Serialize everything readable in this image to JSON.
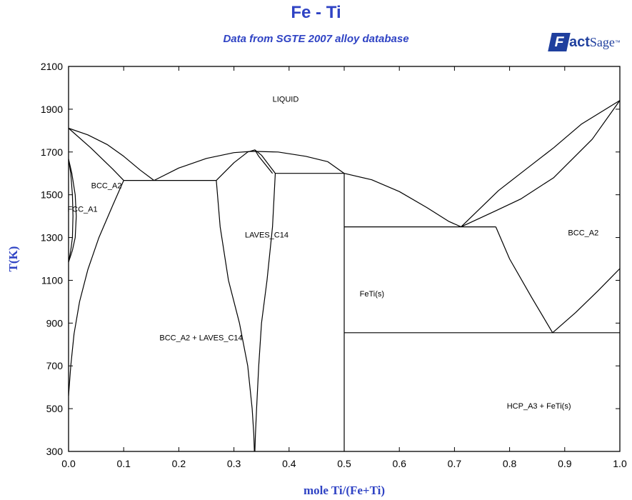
{
  "header": {
    "title": "Fe - Ti",
    "subtitle": "Data from SGTE 2007 alloy database",
    "logo_text": "FactSage™",
    "logo_parts": {
      "mark": "F",
      "act": "act",
      "sage": "Sage",
      "tm": "™"
    }
  },
  "colors": {
    "title": "#2f43c4",
    "logo": "#1f3f9e",
    "line": "#000000",
    "axis_label": "#2f43c4"
  },
  "chart_data": {
    "type": "line",
    "title": "Fe - Ti",
    "subtitle": "Data from SGTE 2007 alloy database",
    "xlabel": "mole Ti/(Fe+Ti)",
    "ylabel": "T(K)",
    "xlim": [
      0,
      1
    ],
    "ylim": [
      300,
      2100
    ],
    "grid": false,
    "xticks": [
      "0.0",
      "0.1",
      "0.2",
      "0.3",
      "0.4",
      "0.5",
      "0.6",
      "0.7",
      "0.8",
      "0.9",
      "1.0"
    ],
    "yticks": [
      "300",
      "500",
      "700",
      "900",
      "1100",
      "1300",
      "1500",
      "1700",
      "1900",
      "2100"
    ],
    "xtick_values": [
      0,
      0.1,
      0.2,
      0.3,
      0.4,
      0.5,
      0.6,
      0.7,
      0.8,
      0.9,
      1.0
    ],
    "ytick_values": [
      300,
      500,
      700,
      900,
      1100,
      1300,
      1500,
      1700,
      1900,
      2100
    ],
    "series": [
      {
        "x": [
          0.0,
          0.035,
          0.07,
          0.1,
          0.13,
          0.155
        ],
        "y": [
          1811,
          1780,
          1735,
          1680,
          1615,
          1567
        ]
      },
      {
        "x": [
          0.0,
          0.04,
          0.08,
          0.1
        ],
        "y": [
          1811,
          1720,
          1620,
          1567
        ]
      },
      {
        "x": [
          0.1,
          0.08,
          0.055,
          0.035,
          0.02,
          0.01,
          0.004,
          0.0
        ],
        "y": [
          1567,
          1450,
          1300,
          1150,
          1000,
          850,
          700,
          560
        ]
      },
      {
        "x": [
          0.0,
          0.006,
          0.012,
          0.014,
          0.012,
          0.007,
          0.0
        ],
        "y": [
          1667,
          1600,
          1500,
          1400,
          1300,
          1240,
          1185
        ]
      },
      {
        "x": [
          0.0,
          0.004,
          0.007,
          0.008,
          0.007,
          0.004,
          0.0
        ],
        "y": [
          1667,
          1600,
          1500,
          1400,
          1300,
          1240,
          1185
        ]
      },
      {
        "x": [
          0.1,
          0.268
        ],
        "y": [
          1567,
          1567
        ]
      },
      {
        "x": [
          0.155,
          0.2,
          0.25,
          0.3,
          0.333,
          0.38,
          0.43,
          0.47,
          0.5
        ],
        "y": [
          1567,
          1625,
          1670,
          1697,
          1703,
          1700,
          1680,
          1655,
          1600
        ]
      },
      {
        "x": [
          0.5,
          0.55,
          0.6,
          0.65,
          0.69,
          0.712
        ],
        "y": [
          1600,
          1570,
          1515,
          1440,
          1375,
          1350
        ]
      },
      {
        "x": [
          0.268,
          0.3,
          0.325,
          0.338,
          0.35,
          0.375
        ],
        "y": [
          1567,
          1650,
          1700,
          1710,
          1685,
          1600
        ]
      },
      {
        "x": [
          0.268,
          0.275,
          0.29,
          0.31,
          0.325,
          0.333,
          0.336,
          0.337
        ],
        "y": [
          1567,
          1350,
          1100,
          900,
          700,
          500,
          380,
          300
        ]
      },
      {
        "x": [
          0.375,
          0.37,
          0.36,
          0.35,
          0.345,
          0.341,
          0.339,
          0.338
        ],
        "y": [
          1600,
          1350,
          1100,
          900,
          700,
          500,
          380,
          300
        ]
      },
      {
        "x": [
          0.338,
          0.345,
          0.37
        ],
        "y": [
          1710,
          1680,
          1600
        ]
      },
      {
        "x": [
          0.375,
          0.5
        ],
        "y": [
          1600,
          1600
        ]
      },
      {
        "x": [
          0.5,
          0.5
        ],
        "y": [
          1600,
          300
        ]
      },
      {
        "x": [
          0.5,
          0.775
        ],
        "y": [
          1350,
          1350
        ]
      },
      {
        "x": [
          0.712,
          0.775,
          0.82,
          0.88,
          0.95,
          1.0
        ],
        "y": [
          1350,
          1425,
          1480,
          1580,
          1760,
          1941
        ]
      },
      {
        "x": [
          0.712,
          0.78,
          0.83,
          0.88,
          0.93,
          1.0
        ],
        "y": [
          1350,
          1520,
          1620,
          1720,
          1830,
          1941
        ]
      },
      {
        "x": [
          0.775,
          0.8,
          0.84,
          0.878
        ],
        "y": [
          1350,
          1200,
          1020,
          855
        ]
      },
      {
        "x": [
          0.878,
          0.92,
          0.96,
          1.0
        ],
        "y": [
          855,
          950,
          1050,
          1155
        ]
      },
      {
        "x": [
          0.5,
          1.0
        ],
        "y": [
          855,
          855
        ]
      }
    ],
    "annotations": [
      {
        "text": "LIQUID",
        "x": 0.37,
        "y": 1935
      },
      {
        "text": "BCC_A2",
        "x": 0.041,
        "y": 1530
      },
      {
        "text": "FCC_A1",
        "x": -0.002,
        "y": 1420
      },
      {
        "text": "LAVES_C14",
        "x": 0.32,
        "y": 1300
      },
      {
        "text": "BCC_A2",
        "x": 0.906,
        "y": 1310
      },
      {
        "text": "FeTi(s)",
        "x": 0.528,
        "y": 1025
      },
      {
        "text": "BCC_A2 + LAVES_C14",
        "x": 0.165,
        "y": 820
      },
      {
        "text": "HCP_A3 + FeTi(s)",
        "x": 0.795,
        "y": 500
      }
    ]
  }
}
